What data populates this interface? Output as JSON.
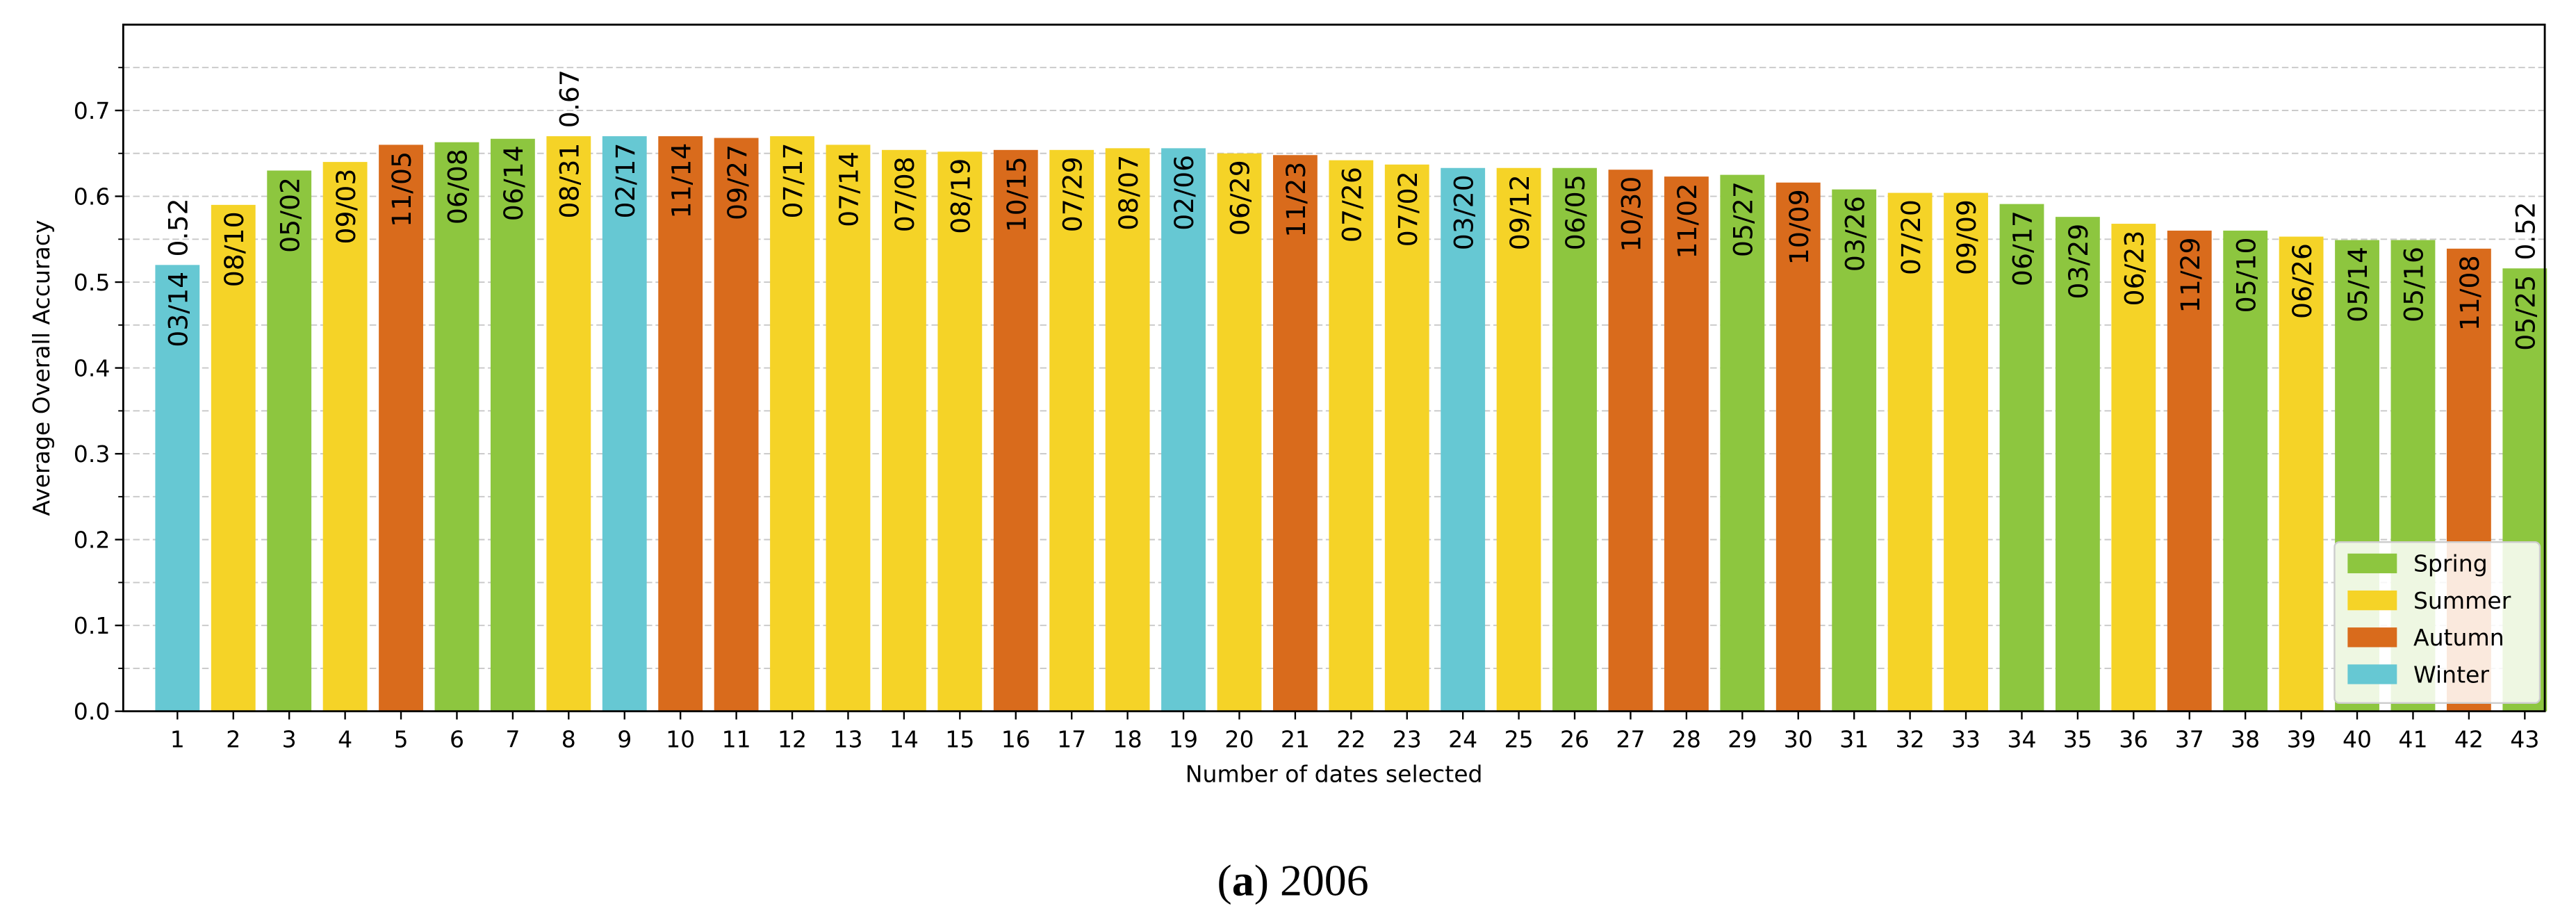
{
  "chart_data": {
    "type": "bar",
    "xlabel": "Number of dates selected",
    "ylabel": "Average Overall Accuracy",
    "caption": {
      "letter": "a",
      "text": "2006"
    },
    "categories": [
      "1",
      "2",
      "3",
      "4",
      "5",
      "6",
      "7",
      "8",
      "9",
      "10",
      "11",
      "12",
      "13",
      "14",
      "15",
      "16",
      "17",
      "18",
      "19",
      "20",
      "21",
      "22",
      "23",
      "24",
      "25",
      "26",
      "27",
      "28",
      "29",
      "30",
      "31",
      "32",
      "33",
      "34",
      "35",
      "36",
      "37",
      "38",
      "39",
      "40",
      "41",
      "42",
      "43"
    ],
    "values": [
      0.52,
      0.59,
      0.63,
      0.64,
      0.66,
      0.663,
      0.667,
      0.67,
      0.67,
      0.67,
      0.668,
      0.67,
      0.66,
      0.654,
      0.652,
      0.654,
      0.654,
      0.656,
      0.656,
      0.65,
      0.648,
      0.642,
      0.637,
      0.633,
      0.633,
      0.633,
      0.631,
      0.623,
      0.625,
      0.616,
      0.608,
      0.604,
      0.604,
      0.591,
      0.576,
      0.568,
      0.56,
      0.56,
      0.553,
      0.549,
      0.549,
      0.539,
      0.516
    ],
    "value_labels": [
      "0.52",
      null,
      null,
      null,
      null,
      null,
      null,
      "0.67",
      null,
      null,
      null,
      null,
      null,
      null,
      null,
      null,
      null,
      null,
      null,
      null,
      null,
      null,
      null,
      null,
      null,
      null,
      null,
      null,
      null,
      null,
      null,
      null,
      null,
      null,
      null,
      null,
      null,
      null,
      null,
      null,
      null,
      null,
      "0.52"
    ],
    "dates": [
      "03/14",
      "08/10",
      "05/02",
      "09/03",
      "11/05",
      "06/08",
      "06/14",
      "08/31",
      "02/17",
      "11/14",
      "09/27",
      "07/17",
      "07/14",
      "07/08",
      "08/19",
      "10/15",
      "07/29",
      "08/07",
      "02/06",
      "06/29",
      "11/23",
      "07/26",
      "07/02",
      "03/20",
      "09/12",
      "06/05",
      "10/30",
      "11/02",
      "05/27",
      "10/09",
      "03/26",
      "07/20",
      "09/09",
      "06/17",
      "03/29",
      "06/23",
      "11/29",
      "05/10",
      "06/26",
      "05/14",
      "05/16",
      "11/08",
      "05/25"
    ],
    "season": [
      "Winter",
      "Summer",
      "Spring",
      "Summer",
      "Autumn",
      "Spring",
      "Spring",
      "Summer",
      "Winter",
      "Autumn",
      "Autumn",
      "Summer",
      "Summer",
      "Summer",
      "Summer",
      "Autumn",
      "Summer",
      "Summer",
      "Winter",
      "Summer",
      "Autumn",
      "Summer",
      "Summer",
      "Winter",
      "Summer",
      "Spring",
      "Autumn",
      "Autumn",
      "Spring",
      "Autumn",
      "Spring",
      "Summer",
      "Summer",
      "Spring",
      "Spring",
      "Summer",
      "Autumn",
      "Spring",
      "Summer",
      "Spring",
      "Spring",
      "Autumn",
      "Spring"
    ],
    "legend": [
      {
        "name": "Spring",
        "color": "#8dc63f"
      },
      {
        "name": "Summer",
        "color": "#f5d327"
      },
      {
        "name": "Autumn",
        "color": "#d96b1c"
      },
      {
        "name": "Winter",
        "color": "#66c8d3"
      }
    ],
    "legend_position": "lower right",
    "ylim": [
      0,
      0.8
    ],
    "yticks": [
      {
        "value": 0,
        "label": "0.0"
      },
      0.1,
      0.2,
      0.3,
      0.4,
      0.5,
      0.6,
      0.7
    ],
    "yticks_minor": [
      0.05,
      0.15,
      0.25,
      0.35,
      0.45,
      0.55,
      0.65,
      0.75
    ],
    "grid": true
  }
}
